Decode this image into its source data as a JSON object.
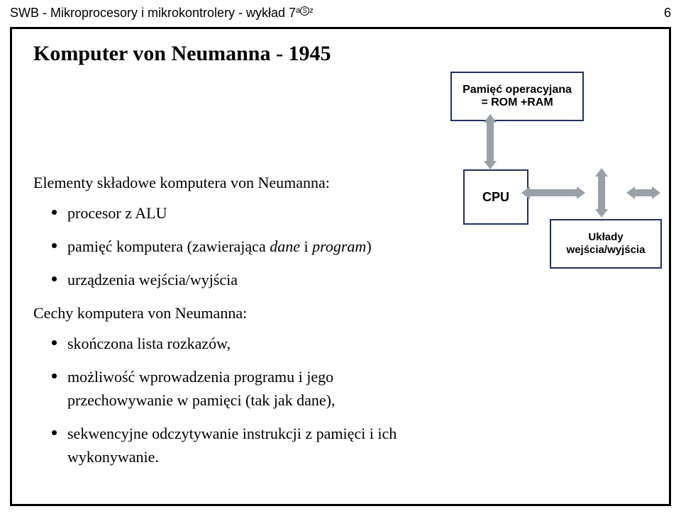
{
  "header": {
    "left_prefix": "SWB - Mikroprocesory i mikrokontrolery - wykład 7",
    "sup_a": "a",
    "sup_s": "S",
    "sup_z": "z",
    "page_number": "6"
  },
  "title": "Komputer von Neumanna - 1945",
  "left": {
    "elements_heading": "Elementy składowe komputera von Neumanna:",
    "elements": [
      "procesor z ALU",
      "pamięć komputera (zawierająca dane i program)",
      "urządzenia wejścia/wyjścia"
    ],
    "features_heading": "Cechy komputera von Neumanna:",
    "features": [
      "skończona lista rozkazów,",
      "możliwość wprowadzenia programu i jego przechowywanie w pamięci (tak jak dane),",
      "sekwencyjne odczytywanie instrukcji z pamięci i ich wykonywanie."
    ]
  },
  "diagram": {
    "mem_line1": "Pamięć operacyjana",
    "mem_line2": "= ROM +RAM",
    "cpu": "CPU",
    "io_line1": "Układy",
    "io_line2": "wejścia/wyjścia",
    "box_border_color": "#203060",
    "arrow_color": "#9aa0a8"
  }
}
